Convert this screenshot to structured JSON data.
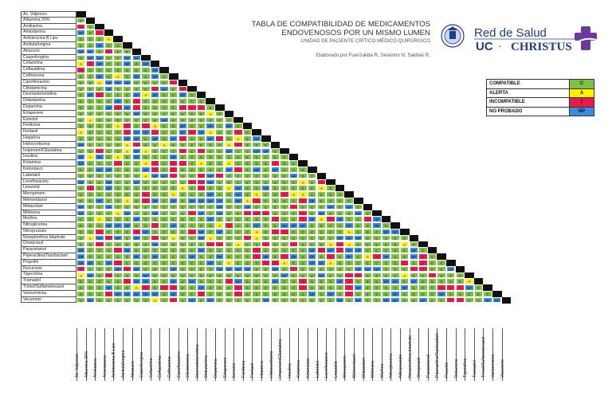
{
  "title": {
    "line1": "TABLA DE COMPATIBILIDAD DE MEDICAMENTOS",
    "line2": "ENDOVENOSOS POR UN MISMO LUMEN",
    "line3": "UNIDAD DE PACIENTE CRÍTICO MÉDICO-QUIRÚRGICO",
    "authors": "Elaborado por Fuenzalida R; Severino N; Saldías R."
  },
  "logo": {
    "red": "Red de Salud",
    "uc": "UC",
    "dot": "·",
    "christus": "CHRISTUS"
  },
  "legend": [
    {
      "label": "COMPATIBLE",
      "code": "C",
      "color": "#7dc242"
    },
    {
      "label": "ALERTA",
      "code": "A",
      "color": "#fff200"
    },
    {
      "label": "INCOMPATIBLE",
      "code": "I",
      "color": "#e8194b"
    },
    {
      "label": "NO PROBADO",
      "code": "NP",
      "color": "#3a8dde"
    }
  ],
  "drugs": [
    "Ac. Valproico",
    "Albumina 20%",
    "Amikacina",
    "Amiodarona",
    "Anfotericina B Lipo",
    "Anidulafungina",
    "Atracurio",
    "Caspofungina",
    "Cefazolina",
    "Ceftazidima",
    "Ceftriaxona",
    "Ciprofloxacino",
    "Clindamicina",
    "Dexmedetomidina",
    "Dobutamina",
    "Dopamina",
    "Ertapenem",
    "Esmolol",
    "Fenitoina",
    "Fentanil",
    "Heparina",
    "Hidrocortisona",
    "Imipenem/Cilastatina",
    "Insulina",
    "Ketamina",
    "Ketorolaco",
    "Labetalol",
    "Levofloxacino",
    "Linezolid",
    "Meropenem",
    "Metronidazol",
    "Midazolam",
    "Milrinona",
    "Morfina",
    "Nitroglicerina",
    "Nitroprusiato",
    "Norepinefrina bitartrato",
    "Omeprazol",
    "Paracetamol",
    "Piperacilina/Tazobactam",
    "Propofol",
    "Rocuronio",
    "Tigeciclina",
    "Tramadol",
    "Trimet/Sulfametoxazol",
    "Vancomicina",
    "Vecuronio"
  ]
}
